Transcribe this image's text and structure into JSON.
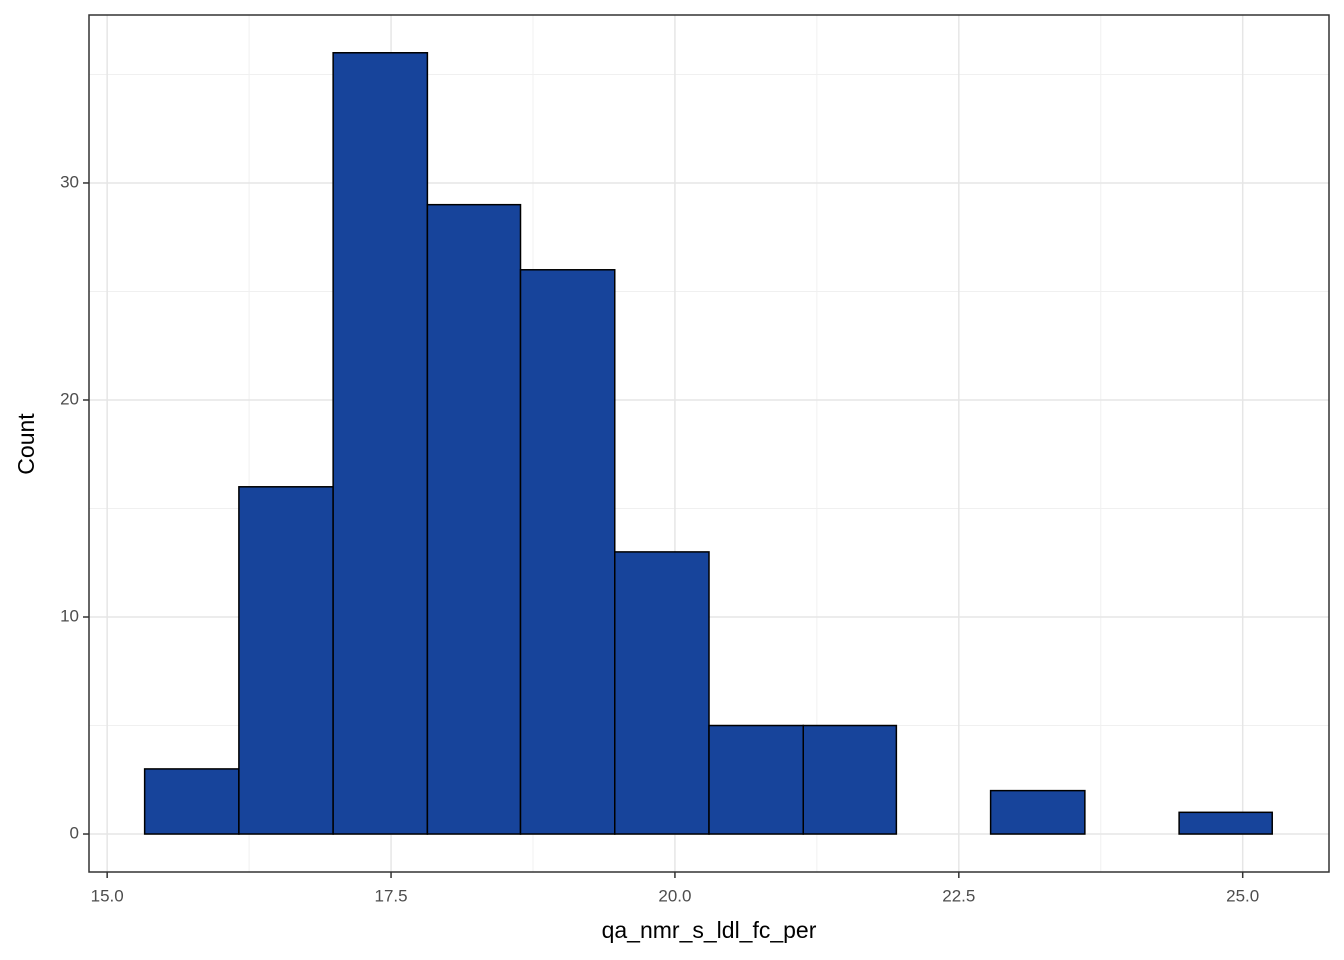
{
  "chart_data": {
    "type": "histogram",
    "x_label": "qa_nmr_s_ldl_fc_per",
    "y_label": "Count",
    "bins": [
      15.33,
      16.16,
      16.99,
      17.82,
      18.64,
      19.47,
      20.3,
      21.13,
      21.95,
      22.78,
      23.61,
      24.44,
      25.26
    ],
    "values": [
      3,
      16,
      36,
      29,
      26,
      13,
      5,
      5,
      0,
      2,
      0,
      1
    ],
    "color": "#17449b",
    "xlim": [
      14.84,
      25.76
    ],
    "ylim": [
      -1.75,
      37.74
    ],
    "xticks": [
      {
        "value": 15,
        "label": "15.0"
      },
      17.5,
      {
        "value": 20,
        "label": "20.0"
      },
      22.5,
      {
        "value": 25,
        "label": "25.0"
      }
    ],
    "yticks": [
      0,
      10,
      20,
      30
    ],
    "grid": true,
    "minor_grid": true
  }
}
